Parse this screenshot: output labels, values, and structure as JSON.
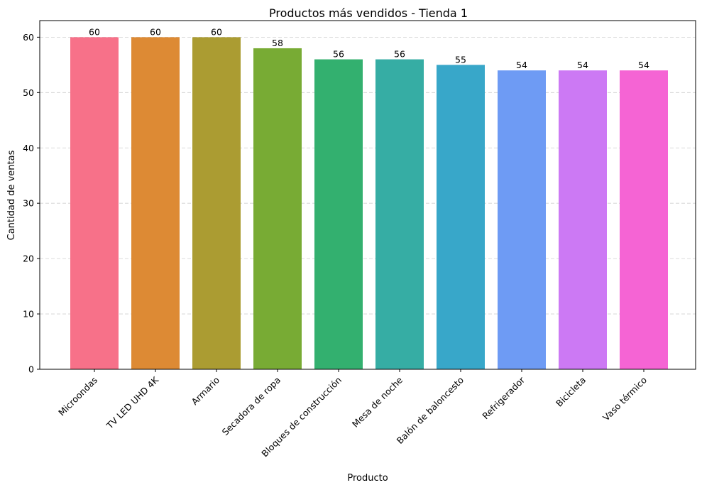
{
  "chart_data": {
    "type": "bar",
    "title": "Productos más vendidos - Tienda 1",
    "xlabel": "Producto",
    "ylabel": "Cantidad de ventas",
    "categories": [
      "Microondas",
      "TV LED UHD 4K",
      "Armario",
      "Secadora de ropa",
      "Bloques de construcción",
      "Mesa de noche",
      "Balón de baloncesto",
      "Refrigerador",
      "Bicicleta",
      "Vaso térmico"
    ],
    "values": [
      60,
      60,
      60,
      58,
      56,
      56,
      55,
      54,
      54,
      54
    ],
    "colors": [
      "#f77189",
      "#dd8a34",
      "#ab9c32",
      "#78ab34",
      "#33b06f",
      "#36ada4",
      "#38a7c9",
      "#6e9bf4",
      "#cc79f4",
      "#f564d4"
    ],
    "ylim": [
      0,
      63
    ],
    "yticks": [
      0,
      10,
      20,
      30,
      40,
      50,
      60
    ],
    "grid": "y-dashed"
  }
}
